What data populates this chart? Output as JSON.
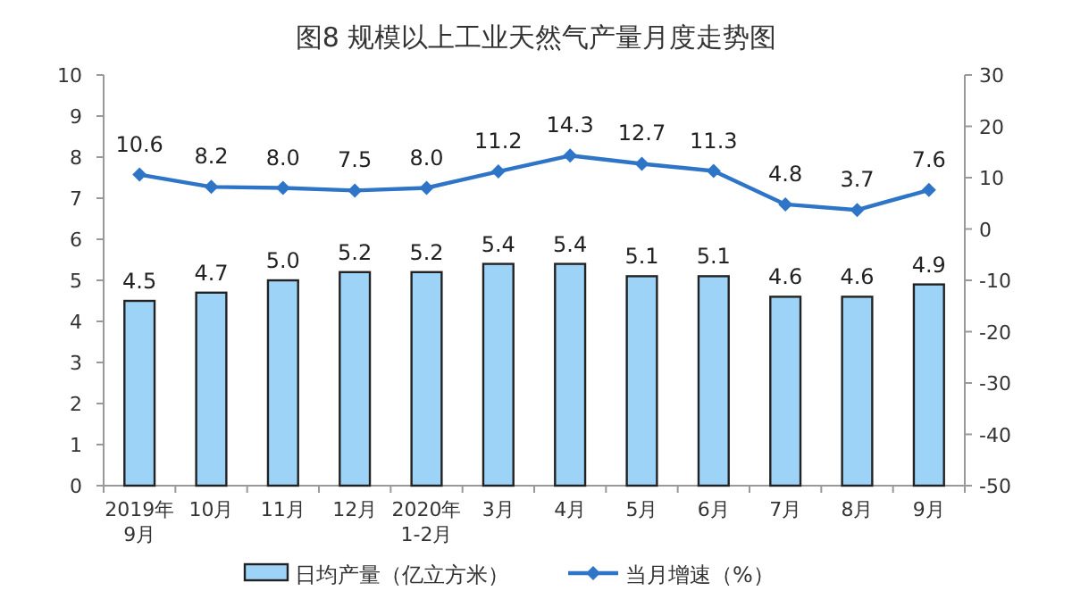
{
  "chart_data": {
    "type": "bar",
    "title": "图8  规模以上工业天然气产量月度走势图",
    "categories": [
      "2019年\n9月",
      "10月",
      "11月",
      "12月",
      "2020年\n1-2月",
      "3月",
      "4月",
      "5月",
      "6月",
      "7月",
      "8月",
      "9月"
    ],
    "series": [
      {
        "name": "日均产量（亿立方米）",
        "color": "#9dd3f7",
        "values": [
          4.5,
          4.7,
          5.0,
          5.2,
          5.2,
          5.4,
          5.4,
          5.1,
          5.1,
          4.6,
          4.6,
          4.9
        ],
        "value_labels": [
          "4.5",
          "4.7",
          "5.0",
          "5.2",
          "5.2",
          "5.4",
          "5.4",
          "5.1",
          "5.1",
          "4.6",
          "4.6",
          "4.9"
        ]
      },
      {
        "name": "当月增速（%）",
        "type": "line",
        "axis": "y2",
        "color": "#2e75c8",
        "marker": "diamond",
        "values": [
          10.6,
          8.2,
          8.0,
          7.5,
          8.0,
          11.2,
          14.3,
          12.7,
          11.3,
          4.8,
          3.7,
          7.6
        ],
        "value_labels": [
          "10.6",
          "8.2",
          "8.0",
          "7.5",
          "8.0",
          "11.2",
          "14.3",
          "12.7",
          "11.3",
          "4.8",
          "3.7",
          "7.6"
        ]
      }
    ],
    "ylim": [
      0,
      10
    ],
    "yticks": [
      0,
      1,
      2,
      3,
      4,
      5,
      6,
      7,
      8,
      9,
      10
    ],
    "y2lim": [
      -50,
      30
    ],
    "y2ticks": [
      -50,
      -40,
      -30,
      -20,
      -10,
      0,
      10,
      20,
      30
    ],
    "grid": false,
    "legend": "bottom"
  }
}
